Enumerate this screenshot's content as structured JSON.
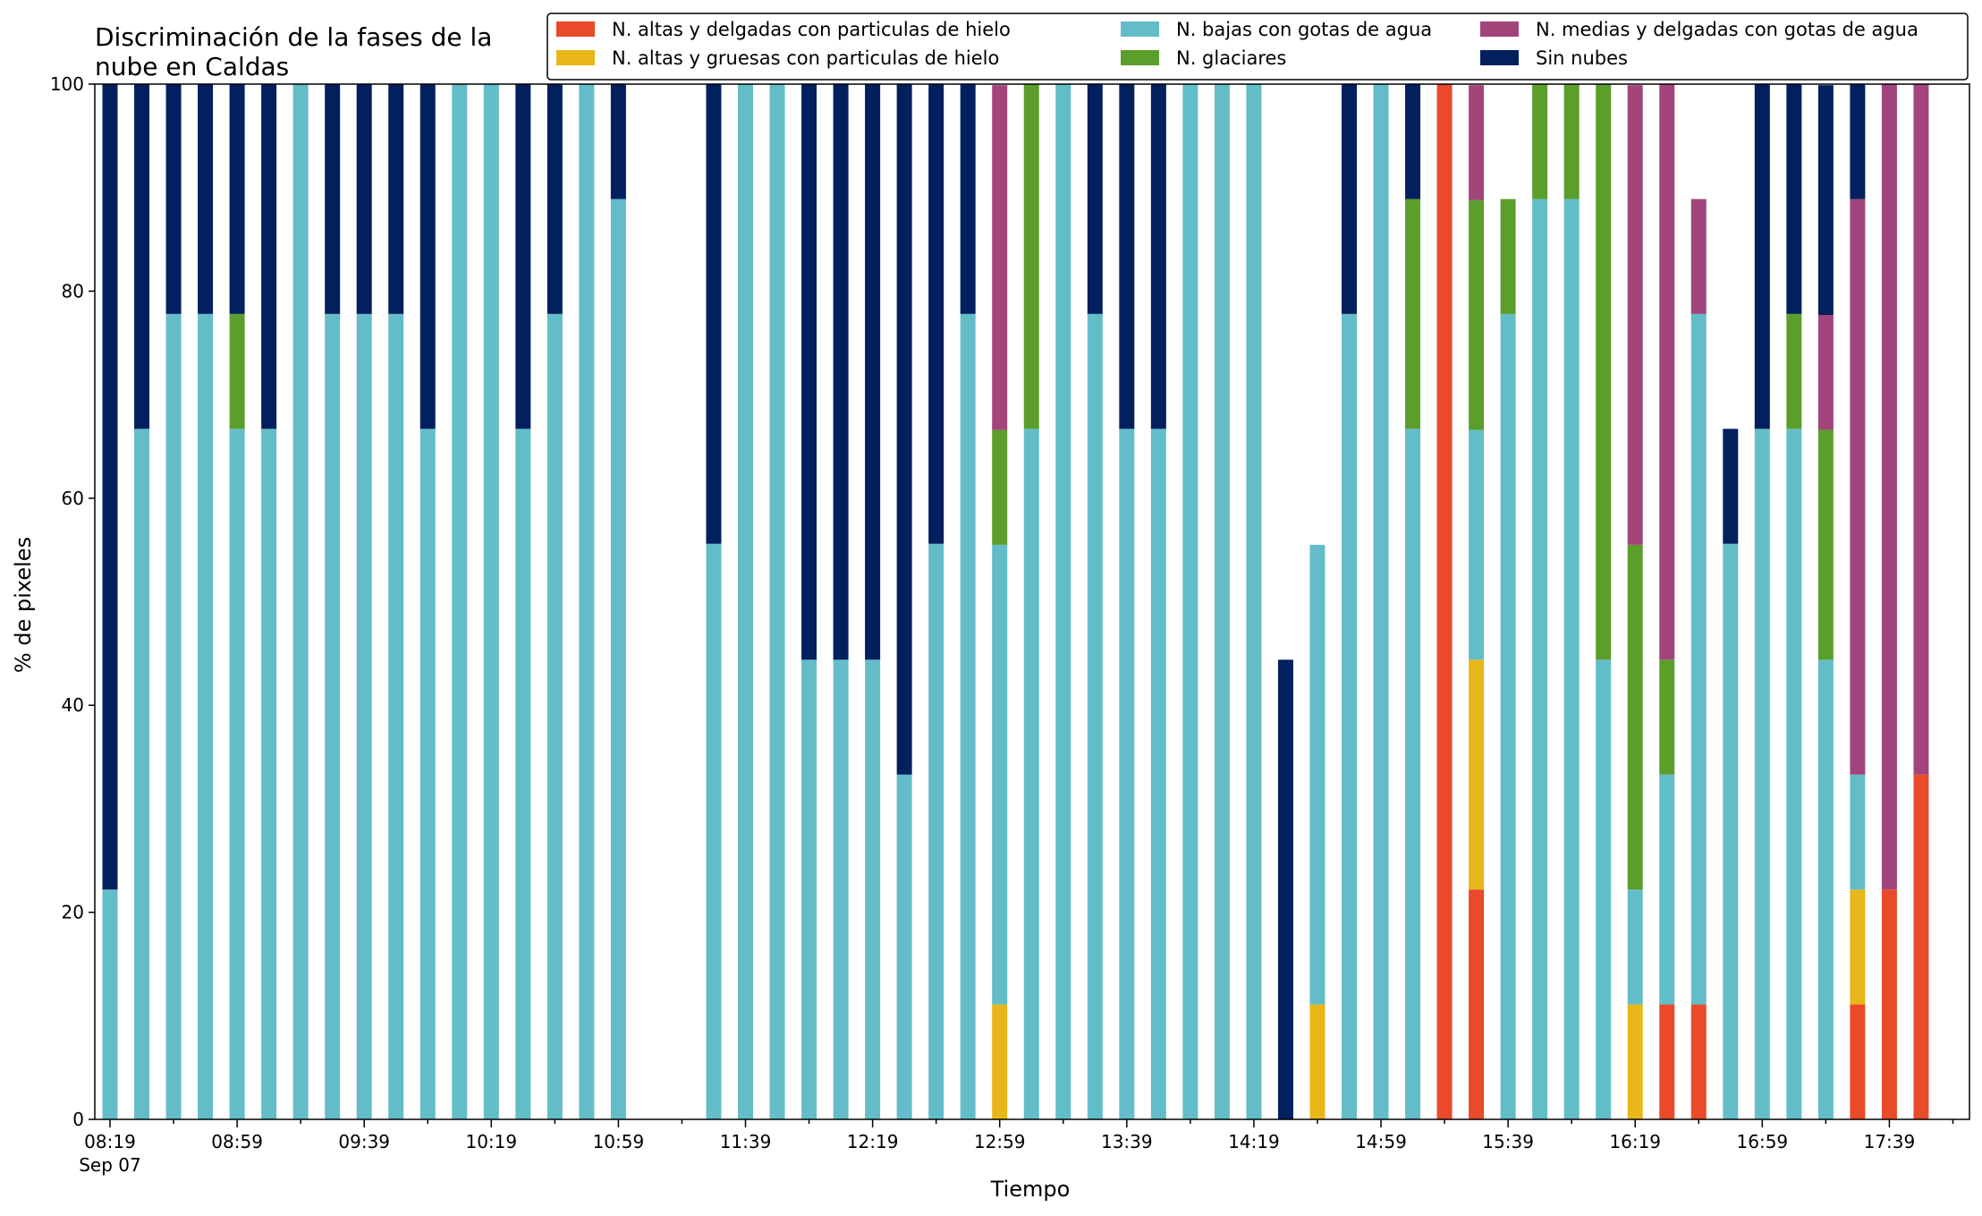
{
  "chart_data": {
    "type": "bar",
    "stacked": true,
    "title": "Discriminación de la fases de la nube en Caldas",
    "title_lines": [
      "Discriminación de la fases de la",
      "nube en Caldas"
    ],
    "xlabel": "Tiempo",
    "ylabel": "% de pixeles",
    "ylim": [
      0,
      100
    ],
    "yticks": [
      0,
      20,
      40,
      60,
      80,
      100
    ],
    "x_start": "Sep 07 08:19",
    "x_step_minutes": 10,
    "x_end": "Sep 07 17:49",
    "xtick_labels": [
      "08:19",
      "08:59",
      "09:39",
      "10:19",
      "10:59",
      "11:39",
      "12:19",
      "12:59",
      "13:39",
      "14:19",
      "14:59",
      "15:39",
      "16:19",
      "16:59",
      "17:39"
    ],
    "xtick_date_label": "Sep 07",
    "grid": false,
    "legend": {
      "placement": "top-right",
      "columns": 3
    },
    "series": [
      {
        "name": "N. altas y delgadas con particulas de hielo",
        "color": "#e84a2a",
        "values": [
          0,
          0,
          0,
          0,
          0,
          0,
          0,
          0,
          0,
          0,
          0,
          0,
          0,
          0,
          0,
          0,
          0,
          0,
          0,
          0,
          0,
          0,
          0,
          0,
          0,
          0,
          0,
          0,
          0,
          0,
          0,
          0,
          0,
          0,
          0,
          0,
          0,
          0,
          0,
          0,
          0,
          0,
          100,
          22.2,
          0,
          0,
          0,
          0,
          0,
          11.1,
          11.1,
          0,
          0,
          0,
          0,
          11.1,
          22.2,
          33.3
        ]
      },
      {
        "name": "N. altas y gruesas con particulas de hielo",
        "color": "#e7b719",
        "values": [
          0,
          0,
          0,
          0,
          0,
          0,
          0,
          0,
          0,
          0,
          0,
          0,
          0,
          0,
          0,
          0,
          0,
          0,
          0,
          0,
          0,
          0,
          0,
          0,
          0,
          0,
          0,
          0,
          11.1,
          0,
          0,
          0,
          0,
          0,
          0,
          0,
          0,
          0,
          11.1,
          0,
          0,
          0,
          0,
          22.2,
          0,
          0,
          0,
          0,
          11.1,
          0,
          0,
          0,
          0,
          0,
          0,
          11.1,
          0,
          0
        ]
      },
      {
        "name": "N. bajas con gotas de agua",
        "color": "#63bdc9",
        "values": [
          22.2,
          66.7,
          77.8,
          77.8,
          66.7,
          66.7,
          100,
          77.8,
          77.8,
          77.8,
          66.7,
          100,
          100,
          66.7,
          77.8,
          100,
          88.9,
          0,
          0,
          55.6,
          100,
          100,
          44.4,
          44.4,
          44.4,
          33.3,
          55.6,
          77.8,
          44.4,
          66.7,
          100,
          77.8,
          66.7,
          66.7,
          100,
          100,
          100,
          0,
          44.4,
          77.8,
          100,
          66.7,
          0,
          22.2,
          77.8,
          88.9,
          88.9,
          44.4,
          11.1,
          22.2,
          66.7,
          55.6,
          66.7,
          66.7,
          44.4,
          11.1,
          0,
          0
        ]
      },
      {
        "name": "N. glaciares",
        "color": "#5c9e2c",
        "values": [
          0,
          0,
          0,
          0,
          11.1,
          0,
          0,
          0,
          0,
          0,
          0,
          0,
          0,
          0,
          0,
          0,
          0,
          0,
          0,
          0,
          0,
          0,
          0,
          0,
          0,
          0,
          0,
          0,
          11.1,
          33.3,
          0,
          0,
          0,
          0,
          0,
          0,
          0,
          0,
          0,
          0,
          0,
          22.2,
          0,
          22.2,
          11.1,
          11.1,
          11.1,
          55.6,
          33.3,
          11.1,
          0,
          0,
          0,
          11.1,
          22.2,
          0,
          0,
          0
        ]
      },
      {
        "name": "N. medias y delgadas con gotas de agua",
        "color": "#a2457b",
        "values": [
          0,
          0,
          0,
          0,
          0,
          0,
          0,
          0,
          0,
          0,
          0,
          0,
          0,
          0,
          0,
          0,
          0,
          0,
          0,
          0,
          0,
          0,
          0,
          0,
          0,
          0,
          0,
          0,
          33.3,
          0,
          0,
          0,
          0,
          0,
          0,
          0,
          0,
          0,
          0,
          0,
          0,
          0,
          0,
          11.1,
          0,
          0,
          0,
          0,
          44.4,
          55.6,
          11.1,
          0,
          0,
          0,
          11.1,
          55.6,
          77.8,
          66.7
        ]
      },
      {
        "name": "Sin nubes",
        "color": "#03205e",
        "values": [
          77.8,
          33.3,
          22.2,
          22.2,
          22.2,
          33.3,
          0,
          22.2,
          22.2,
          22.2,
          33.3,
          0,
          0,
          33.3,
          22.2,
          0,
          11.1,
          0,
          0,
          44.4,
          0,
          0,
          55.6,
          55.6,
          55.6,
          66.7,
          44.4,
          22.2,
          0,
          0,
          0,
          22.2,
          33.3,
          33.3,
          0,
          0,
          0,
          44.4,
          0,
          22.2,
          0,
          11.1,
          0,
          0,
          0,
          0,
          0,
          0,
          0,
          0,
          0,
          11.1,
          33.3,
          22.2,
          22.2,
          11.1,
          0,
          0
        ]
      }
    ]
  }
}
